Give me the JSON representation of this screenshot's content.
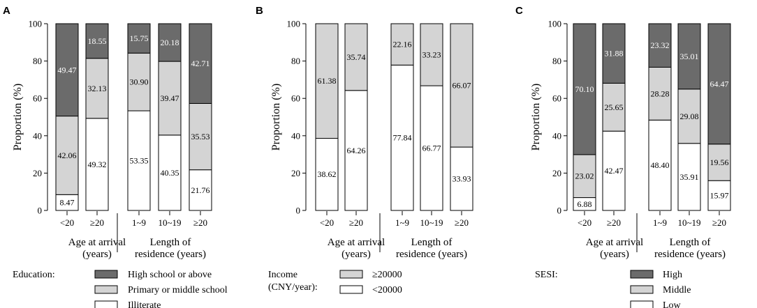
{
  "colors": {
    "high": "#6b6b6b",
    "mid": "#d4d4d4",
    "low": "#ffffff",
    "stroke": "#000000",
    "label_dark": "#ffffff",
    "label_light": "#000000"
  },
  "chart_data": [
    {
      "panel": "A",
      "type": "bar",
      "stacked": true,
      "ylabel": "Proportion (%)",
      "ylim": [
        0,
        100
      ],
      "yticks": [
        "0",
        "20",
        "40",
        "60",
        "80",
        "100"
      ],
      "categories": [
        "<20",
        "≥20",
        "1~9",
        "10~19",
        "≥20"
      ],
      "groups": [
        {
          "label_line1": "Age at arrival",
          "label_line2": "(years)",
          "members": [
            0,
            1
          ]
        },
        {
          "label_line1": "Length of",
          "label_line2": "residence (years)",
          "members": [
            2,
            3,
            4
          ]
        }
      ],
      "series": [
        {
          "name": "Illiterate",
          "key": "low",
          "values": [
            8.47,
            49.32,
            53.35,
            40.35,
            21.76
          ],
          "labels": [
            "8.47",
            "49.32",
            "53.35",
            "40.35",
            "21.76"
          ]
        },
        {
          "name": "Primary or middle school",
          "key": "mid",
          "values": [
            42.06,
            32.13,
            30.9,
            39.47,
            35.53
          ],
          "labels": [
            "42.06",
            "32.13",
            "30.90",
            "39.47",
            "35.53"
          ]
        },
        {
          "name": "High school or above",
          "key": "high",
          "values": [
            49.47,
            18.55,
            15.75,
            20.18,
            42.71
          ],
          "labels": [
            "49.47",
            "18.55",
            "15.75",
            "20.18",
            "42.71"
          ]
        }
      ],
      "legend": {
        "title_line1": "Education:",
        "title_line2": "",
        "items": [
          {
            "key": "high",
            "label": "High school or above"
          },
          {
            "key": "mid",
            "label": "Primary or middle school"
          },
          {
            "key": "low",
            "label": "Illiterate"
          }
        ]
      }
    },
    {
      "panel": "B",
      "type": "bar",
      "stacked": true,
      "ylabel": "Proportion (%)",
      "ylim": [
        0,
        100
      ],
      "yticks": [
        "0",
        "20",
        "40",
        "60",
        "80",
        "100"
      ],
      "categories": [
        "<20",
        "≥20",
        "1~9",
        "10~19",
        "≥20"
      ],
      "groups": [
        {
          "label_line1": "Age at arrival",
          "label_line2": "(years)",
          "members": [
            0,
            1
          ]
        },
        {
          "label_line1": "Length of",
          "label_line2": "residence (years)",
          "members": [
            2,
            3,
            4
          ]
        }
      ],
      "series": [
        {
          "name": "<20000",
          "key": "low",
          "values": [
            38.62,
            64.26,
            77.84,
            66.77,
            33.93
          ],
          "labels": [
            "38.62",
            "64.26",
            "77.84",
            "66.77",
            "33.93"
          ]
        },
        {
          "name": "≥20000",
          "key": "mid",
          "values": [
            61.38,
            35.74,
            22.16,
            33.23,
            66.07
          ],
          "labels": [
            "61.38",
            "35.74",
            "22.16",
            "33.23",
            "66.07"
          ]
        }
      ],
      "legend": {
        "title_line1": "Income",
        "title_line2": "(CNY/year):",
        "items": [
          {
            "key": "mid",
            "label": "≥20000"
          },
          {
            "key": "low",
            "label": "<20000"
          }
        ]
      }
    },
    {
      "panel": "C",
      "type": "bar",
      "stacked": true,
      "ylabel": "Proportion (%)",
      "ylim": [
        0,
        100
      ],
      "yticks": [
        "0",
        "20",
        "40",
        "60",
        "80",
        "100"
      ],
      "categories": [
        "<20",
        "≥20",
        "1~9",
        "10~19",
        "≥20"
      ],
      "groups": [
        {
          "label_line1": "Age at arrival",
          "label_line2": "(years)",
          "members": [
            0,
            1
          ]
        },
        {
          "label_line1": "Length of",
          "label_line2": "residence (years)",
          "members": [
            2,
            3,
            4
          ]
        }
      ],
      "series": [
        {
          "name": "Low",
          "key": "low",
          "values": [
            6.88,
            42.47,
            48.4,
            35.91,
            15.97
          ],
          "labels": [
            "6.88",
            "42.47",
            "48.40",
            "35.91",
            "15.97"
          ]
        },
        {
          "name": "Middle",
          "key": "mid",
          "values": [
            23.02,
            25.65,
            28.28,
            29.08,
            19.56
          ],
          "labels": [
            "23.02",
            "25.65",
            "28.28",
            "29.08",
            "19.56"
          ]
        },
        {
          "name": "High",
          "key": "high",
          "values": [
            70.1,
            31.88,
            23.32,
            35.01,
            64.47
          ],
          "labels": [
            "70.10",
            "31.88",
            "23.32",
            "35.01",
            "64.47"
          ]
        }
      ],
      "legend": {
        "title_line1": "SESI:",
        "title_line2": "",
        "items": [
          {
            "key": "high",
            "label": "High"
          },
          {
            "key": "mid",
            "label": "Middle"
          },
          {
            "key": "low",
            "label": "Low"
          }
        ]
      }
    }
  ]
}
